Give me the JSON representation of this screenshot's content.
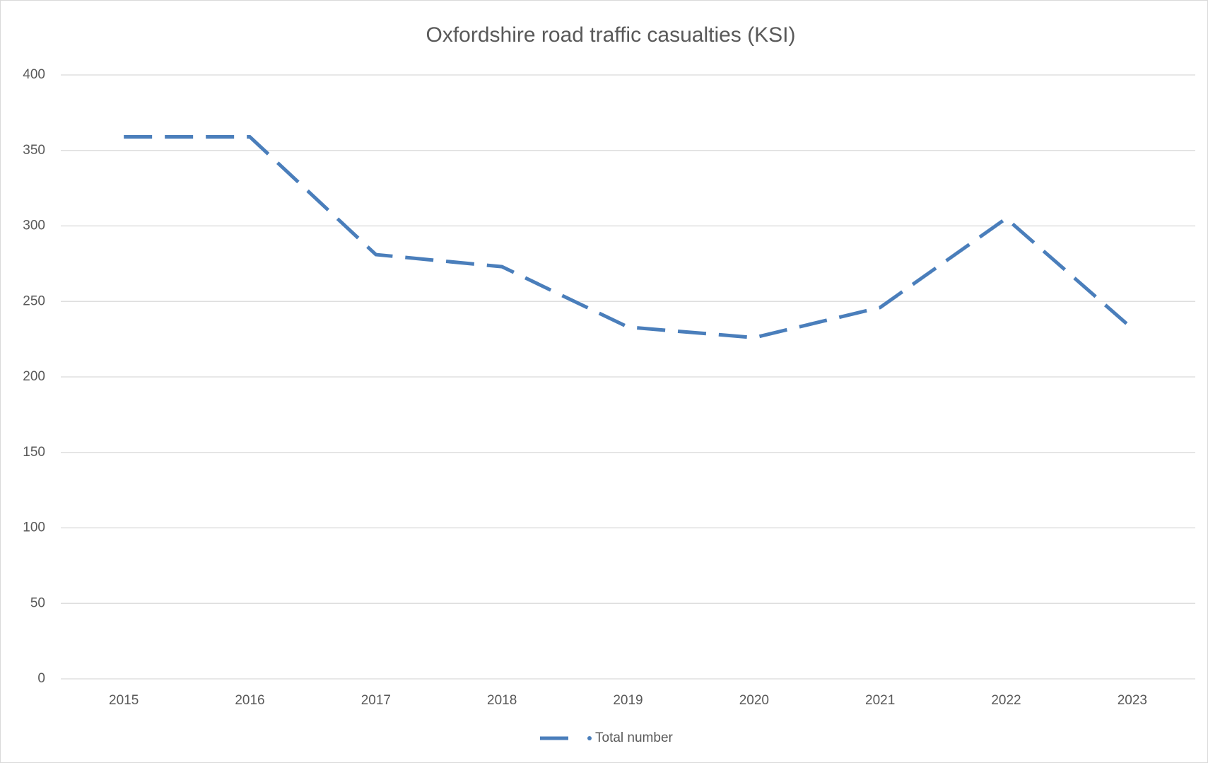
{
  "chart_data": {
    "type": "line",
    "title": "Oxfordshire road traffic casualties (KSI)",
    "categories": [
      "2015",
      "2016",
      "2017",
      "2018",
      "2019",
      "2020",
      "2021",
      "2022",
      "2023"
    ],
    "series": [
      {
        "name": "Total number",
        "color": "#4a7ebb",
        "values": [
          359,
          359,
          281,
          273,
          233,
          226,
          246,
          305,
          232
        ]
      }
    ],
    "ylim": [
      0,
      400
    ],
    "yticks": [
      0,
      50,
      100,
      150,
      200,
      250,
      300,
      350,
      400
    ],
    "grid": true,
    "legend": "bottom"
  }
}
